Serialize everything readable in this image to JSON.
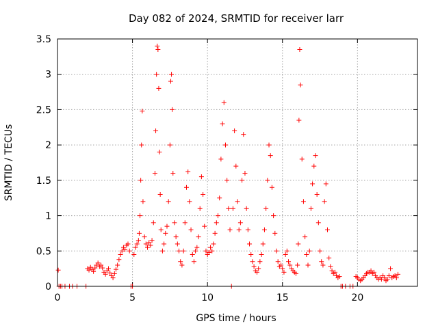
{
  "chart_data": {
    "type": "scatter",
    "title": "Day 082 of 2024, SRMTID for receiver larr",
    "xlabel": "GPS time / hours",
    "ylabel": "SRMTID / TECUs",
    "xlim": [
      0,
      24
    ],
    "ylim": [
      0,
      3.5
    ],
    "xticks": [
      0,
      5,
      10,
      15,
      20
    ],
    "xtick_labels": [
      "0",
      "5",
      "10",
      "15",
      "20"
    ],
    "yticks": [
      0,
      0.5,
      1,
      1.5,
      2,
      2.5,
      3,
      3.5
    ],
    "ytick_labels": [
      "0",
      "0.5",
      "1",
      "1.5",
      "2",
      "2.5",
      "3",
      "3.5"
    ],
    "grid": true,
    "marker": "+",
    "color": "#ff0000",
    "series": [
      {
        "name": "SRMTID",
        "points": [
          [
            0.05,
            0.23
          ],
          [
            0.1,
            0.0
          ],
          [
            0.2,
            0.0
          ],
          [
            0.3,
            0.0
          ],
          [
            0.5,
            0.0
          ],
          [
            0.8,
            0.0
          ],
          [
            1.0,
            0.0
          ],
          [
            1.3,
            0.0
          ],
          [
            1.9,
            0.0
          ],
          [
            2.0,
            0.25
          ],
          [
            2.1,
            0.23
          ],
          [
            2.2,
            0.27
          ],
          [
            2.3,
            0.24
          ],
          [
            2.4,
            0.21
          ],
          [
            2.5,
            0.26
          ],
          [
            2.6,
            0.3
          ],
          [
            2.7,
            0.33
          ],
          [
            2.8,
            0.28
          ],
          [
            2.9,
            0.3
          ],
          [
            3.0,
            0.26
          ],
          [
            3.1,
            0.2
          ],
          [
            3.2,
            0.17
          ],
          [
            3.3,
            0.22
          ],
          [
            3.4,
            0.25
          ],
          [
            3.5,
            0.19
          ],
          [
            3.6,
            0.15
          ],
          [
            3.7,
            0.12
          ],
          [
            3.8,
            0.18
          ],
          [
            3.9,
            0.24
          ],
          [
            4.0,
            0.3
          ],
          [
            4.1,
            0.38
          ],
          [
            4.2,
            0.45
          ],
          [
            4.3,
            0.5
          ],
          [
            4.4,
            0.55
          ],
          [
            4.5,
            0.52
          ],
          [
            4.6,
            0.58
          ],
          [
            4.7,
            0.6
          ],
          [
            4.8,
            0.5
          ],
          [
            4.9,
            0.0
          ],
          [
            5.0,
            0.0
          ],
          [
            5.1,
            0.45
          ],
          [
            5.2,
            0.55
          ],
          [
            5.3,
            0.6
          ],
          [
            5.4,
            0.65
          ],
          [
            5.45,
            0.75
          ],
          [
            5.5,
            1.0
          ],
          [
            5.55,
            1.5
          ],
          [
            5.6,
            2.0
          ],
          [
            5.65,
            2.48
          ],
          [
            5.7,
            1.2
          ],
          [
            5.8,
            0.7
          ],
          [
            5.9,
            0.6
          ],
          [
            6.0,
            0.55
          ],
          [
            6.1,
            0.62
          ],
          [
            6.2,
            0.58
          ],
          [
            6.3,
            0.65
          ],
          [
            6.4,
            0.9
          ],
          [
            6.5,
            1.6
          ],
          [
            6.55,
            2.2
          ],
          [
            6.6,
            3.0
          ],
          [
            6.65,
            3.4
          ],
          [
            6.7,
            3.35
          ],
          [
            6.75,
            2.8
          ],
          [
            6.8,
            1.9
          ],
          [
            6.85,
            1.3
          ],
          [
            6.9,
            0.8
          ],
          [
            7.0,
            0.5
          ],
          [
            7.1,
            0.6
          ],
          [
            7.2,
            0.75
          ],
          [
            7.3,
            0.85
          ],
          [
            7.4,
            1.2
          ],
          [
            7.5,
            2.0
          ],
          [
            7.55,
            2.9
          ],
          [
            7.6,
            3.0
          ],
          [
            7.65,
            2.5
          ],
          [
            7.7,
            1.6
          ],
          [
            7.8,
            0.9
          ],
          [
            7.9,
            0.7
          ],
          [
            8.0,
            0.6
          ],
          [
            8.1,
            0.5
          ],
          [
            8.2,
            0.35
          ],
          [
            8.3,
            0.3
          ],
          [
            8.4,
            0.5
          ],
          [
            8.5,
            0.9
          ],
          [
            8.6,
            1.4
          ],
          [
            8.7,
            1.62
          ],
          [
            8.8,
            1.2
          ],
          [
            8.9,
            0.8
          ],
          [
            9.0,
            0.45
          ],
          [
            9.1,
            0.35
          ],
          [
            9.2,
            0.5
          ],
          [
            9.3,
            0.55
          ],
          [
            9.4,
            0.7
          ],
          [
            9.5,
            1.1
          ],
          [
            9.6,
            1.55
          ],
          [
            9.7,
            1.3
          ],
          [
            9.8,
            0.85
          ],
          [
            9.9,
            0.5
          ],
          [
            10.0,
            0.45
          ],
          [
            10.1,
            0.48
          ],
          [
            10.2,
            0.55
          ],
          [
            10.3,
            0.5
          ],
          [
            10.4,
            0.6
          ],
          [
            10.5,
            0.75
          ],
          [
            10.6,
            0.9
          ],
          [
            10.7,
            1.0
          ],
          [
            10.8,
            1.25
          ],
          [
            10.9,
            1.8
          ],
          [
            11.0,
            2.3
          ],
          [
            11.1,
            2.6
          ],
          [
            11.2,
            2.0
          ],
          [
            11.3,
            1.5
          ],
          [
            11.4,
            1.1
          ],
          [
            11.5,
            0.8
          ],
          [
            11.6,
            0.0
          ],
          [
            11.7,
            1.1
          ],
          [
            11.8,
            2.2
          ],
          [
            11.9,
            1.7
          ],
          [
            12.0,
            1.2
          ],
          [
            12.1,
            0.8
          ],
          [
            12.2,
            0.9
          ],
          [
            12.3,
            1.5
          ],
          [
            12.4,
            2.15
          ],
          [
            12.5,
            1.6
          ],
          [
            12.6,
            1.1
          ],
          [
            12.7,
            0.8
          ],
          [
            12.8,
            0.6
          ],
          [
            12.9,
            0.45
          ],
          [
            13.0,
            0.35
          ],
          [
            13.1,
            0.28
          ],
          [
            13.2,
            0.22
          ],
          [
            13.3,
            0.2
          ],
          [
            13.4,
            0.25
          ],
          [
            13.5,
            0.35
          ],
          [
            13.6,
            0.45
          ],
          [
            13.7,
            0.6
          ],
          [
            13.8,
            0.8
          ],
          [
            13.9,
            1.1
          ],
          [
            14.0,
            1.5
          ],
          [
            14.1,
            2.0
          ],
          [
            14.2,
            1.85
          ],
          [
            14.3,
            1.4
          ],
          [
            14.4,
            1.0
          ],
          [
            14.5,
            0.75
          ],
          [
            14.6,
            0.5
          ],
          [
            14.7,
            0.35
          ],
          [
            14.8,
            0.28
          ],
          [
            14.9,
            0.3
          ],
          [
            15.0,
            0.25
          ],
          [
            15.1,
            0.2
          ],
          [
            15.2,
            0.45
          ],
          [
            15.3,
            0.5
          ],
          [
            15.4,
            0.35
          ],
          [
            15.5,
            0.3
          ],
          [
            15.6,
            0.25
          ],
          [
            15.7,
            0.22
          ],
          [
            15.8,
            0.2
          ],
          [
            15.9,
            0.18
          ],
          [
            16.0,
            0.3
          ],
          [
            16.05,
            0.6
          ],
          [
            16.1,
            2.35
          ],
          [
            16.15,
            3.35
          ],
          [
            16.2,
            2.85
          ],
          [
            16.3,
            1.8
          ],
          [
            16.4,
            1.2
          ],
          [
            16.5,
            0.7
          ],
          [
            16.6,
            0.45
          ],
          [
            16.7,
            0.3
          ],
          [
            16.8,
            0.5
          ],
          [
            16.9,
            1.1
          ],
          [
            17.0,
            1.45
          ],
          [
            17.1,
            1.7
          ],
          [
            17.2,
            1.85
          ],
          [
            17.3,
            1.3
          ],
          [
            17.4,
            0.9
          ],
          [
            17.5,
            0.5
          ],
          [
            17.6,
            0.35
          ],
          [
            17.7,
            0.3
          ],
          [
            17.8,
            1.2
          ],
          [
            17.9,
            1.45
          ],
          [
            18.0,
            0.8
          ],
          [
            18.1,
            0.4
          ],
          [
            18.2,
            0.28
          ],
          [
            18.3,
            0.22
          ],
          [
            18.4,
            0.18
          ],
          [
            18.5,
            0.2
          ],
          [
            18.6,
            0.15
          ],
          [
            18.7,
            0.12
          ],
          [
            18.8,
            0.14
          ],
          [
            18.9,
            0.0
          ],
          [
            19.0,
            0.0
          ],
          [
            19.2,
            0.0
          ],
          [
            19.5,
            0.0
          ],
          [
            19.7,
            0.0
          ],
          [
            19.9,
            0.14
          ],
          [
            20.0,
            0.12
          ],
          [
            20.1,
            0.1
          ],
          [
            20.2,
            0.08
          ],
          [
            20.3,
            0.1
          ],
          [
            20.4,
            0.12
          ],
          [
            20.5,
            0.15
          ],
          [
            20.6,
            0.18
          ],
          [
            20.7,
            0.2
          ],
          [
            20.8,
            0.2
          ],
          [
            20.9,
            0.22
          ],
          [
            21.0,
            0.18
          ],
          [
            21.1,
            0.2
          ],
          [
            21.2,
            0.15
          ],
          [
            21.3,
            0.12
          ],
          [
            21.4,
            0.1
          ],
          [
            21.5,
            0.12
          ],
          [
            21.6,
            0.1
          ],
          [
            21.7,
            0.15
          ],
          [
            21.8,
            0.12
          ],
          [
            21.9,
            0.08
          ],
          [
            22.0,
            0.1
          ],
          [
            22.1,
            0.15
          ],
          [
            22.2,
            0.25
          ],
          [
            22.3,
            0.12
          ],
          [
            22.4,
            0.14
          ],
          [
            22.5,
            0.15
          ],
          [
            22.6,
            0.12
          ],
          [
            22.7,
            0.17
          ]
        ]
      }
    ]
  }
}
